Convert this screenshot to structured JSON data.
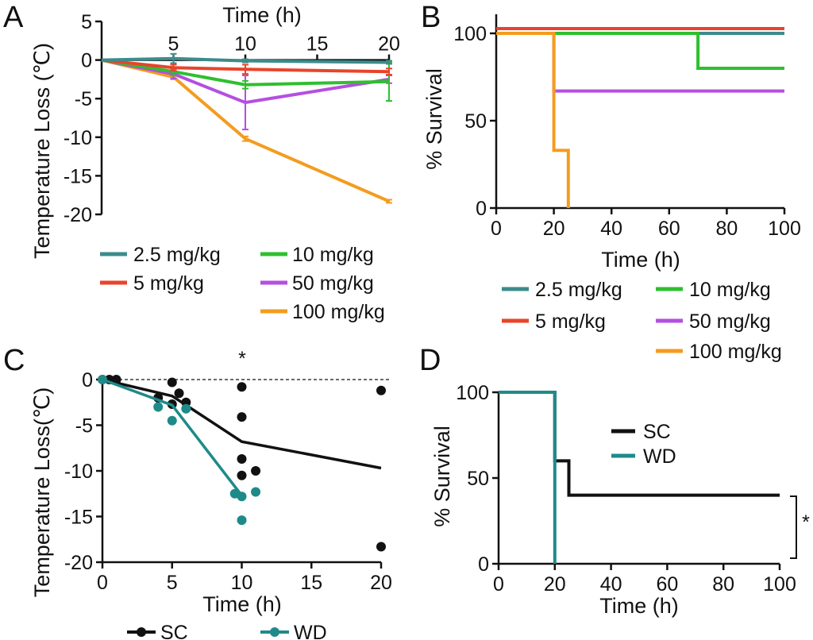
{
  "chart_data": [
    {
      "panel": "A",
      "type": "line",
      "xlabel": "Time (h)",
      "ylabel": "Temperature Loss (℃)",
      "xlim": [
        0,
        20
      ],
      "ylim": [
        -20,
        5
      ],
      "xticks": [
        5,
        10,
        15,
        20
      ],
      "yticks": [
        5,
        0,
        -5,
        -10,
        -15,
        -20
      ],
      "x": [
        0,
        5,
        10,
        20
      ],
      "series": [
        {
          "name": "2.5 mg/kg",
          "color": "#3d8b8b",
          "values": [
            0,
            0.2,
            -0.1,
            -0.3
          ],
          "err": [
            0,
            0.6,
            0.2,
            0.2
          ]
        },
        {
          "name": "5 mg/kg",
          "color": "#e8442a",
          "values": [
            0,
            -1.0,
            -1.2,
            -1.5
          ],
          "err": [
            0,
            0.4,
            0.6,
            0.4
          ]
        },
        {
          "name": "10 mg/kg",
          "color": "#2fbf2f",
          "values": [
            0,
            -1.5,
            -3.2,
            -2.8
          ],
          "err": [
            0,
            0.5,
            0.5,
            2.5
          ]
        },
        {
          "name": "50 mg/kg",
          "color": "#b44fe0",
          "values": [
            0,
            -1.8,
            -5.5,
            -2.5
          ],
          "err": [
            0,
            0.6,
            3.5,
            0.5
          ]
        },
        {
          "name": "100 mg/kg",
          "color": "#f39c1f",
          "values": [
            0,
            -2.2,
            -10.2,
            -18.3
          ],
          "err": [
            0,
            0.3,
            0.3,
            0.2
          ]
        }
      ]
    },
    {
      "panel": "B",
      "type": "line",
      "subtype": "step",
      "xlabel": "Time (h)",
      "ylabel": "% Survival",
      "xlim": [
        0,
        100
      ],
      "ylim": [
        0,
        100
      ],
      "xticks": [
        0,
        20,
        40,
        60,
        80,
        100
      ],
      "yticks": [
        0,
        50,
        100
      ],
      "series": [
        {
          "name": "2.5 mg/kg",
          "color": "#3d8b8b",
          "x": [
            0,
            100
          ],
          "y": [
            100,
            100
          ]
        },
        {
          "name": "5 mg/kg",
          "color": "#e8442a",
          "x": [
            0,
            100
          ],
          "y": [
            100,
            100
          ]
        },
        {
          "name": "10 mg/kg",
          "color": "#2fbf2f",
          "x": [
            0,
            70,
            100
          ],
          "y": [
            100,
            80,
            80
          ]
        },
        {
          "name": "50 mg/kg",
          "color": "#b44fe0",
          "x": [
            0,
            20,
            100
          ],
          "y": [
            100,
            67,
            67
          ]
        },
        {
          "name": "100 mg/kg",
          "color": "#f39c1f",
          "x": [
            0,
            20,
            25
          ],
          "y": [
            100,
            33,
            0
          ]
        }
      ]
    },
    {
      "panel": "C",
      "type": "scatter",
      "xlabel": "Time (h)",
      "ylabel": "Temperature Loss(℃)",
      "xlim": [
        0,
        20
      ],
      "ylim": [
        -20,
        0
      ],
      "xticks": [
        0,
        5,
        10,
        15,
        20
      ],
      "yticks": [
        0,
        -5,
        -10,
        -15,
        -20
      ],
      "reference_line": 0,
      "annotation": "*",
      "series": [
        {
          "name": "SC",
          "color": "#111111",
          "line": {
            "x": [
              0,
              5,
              10,
              20
            ],
            "y": [
              0,
              -1.8,
              -6.8,
              -9.7
            ]
          },
          "points": [
            [
              0,
              0
            ],
            [
              0.5,
              0
            ],
            [
              1,
              0
            ],
            [
              4,
              -2
            ],
            [
              5,
              -0.3
            ],
            [
              5,
              -2.7
            ],
            [
              5.5,
              -1.5
            ],
            [
              6,
              -2.5
            ],
            [
              10,
              -0.8
            ],
            [
              10,
              -4.1
            ],
            [
              10,
              -8.7
            ],
            [
              10,
              -10.5
            ],
            [
              11,
              -10
            ],
            [
              20,
              -1.2
            ],
            [
              20,
              -18.3
            ]
          ]
        },
        {
          "name": "WD",
          "color": "#1f8a8a",
          "line": {
            "x": [
              0,
              5,
              10
            ],
            "y": [
              0,
              -2.8,
              -12.7
            ]
          },
          "points": [
            [
              0,
              0
            ],
            [
              4,
              -3
            ],
            [
              5,
              -4.5
            ],
            [
              6,
              -3.2
            ],
            [
              9.5,
              -12.5
            ],
            [
              10,
              -12.8
            ],
            [
              10,
              -15.4
            ],
            [
              11,
              -12.3
            ]
          ]
        }
      ]
    },
    {
      "panel": "D",
      "type": "line",
      "subtype": "step",
      "xlabel": "Time (h)",
      "ylabel": "% Survival",
      "xlim": [
        0,
        100
      ],
      "ylim": [
        0,
        100
      ],
      "xticks": [
        0,
        20,
        40,
        60,
        80,
        100
      ],
      "yticks": [
        0,
        50,
        100
      ],
      "annotation": "*",
      "series": [
        {
          "name": "SC",
          "color": "#111111",
          "x": [
            0,
            20,
            25,
            100
          ],
          "y": [
            100,
            60,
            40,
            40
          ]
        },
        {
          "name": "WD",
          "color": "#1f8a8a",
          "x": [
            0,
            20
          ],
          "y": [
            100,
            0
          ]
        }
      ]
    }
  ]
}
